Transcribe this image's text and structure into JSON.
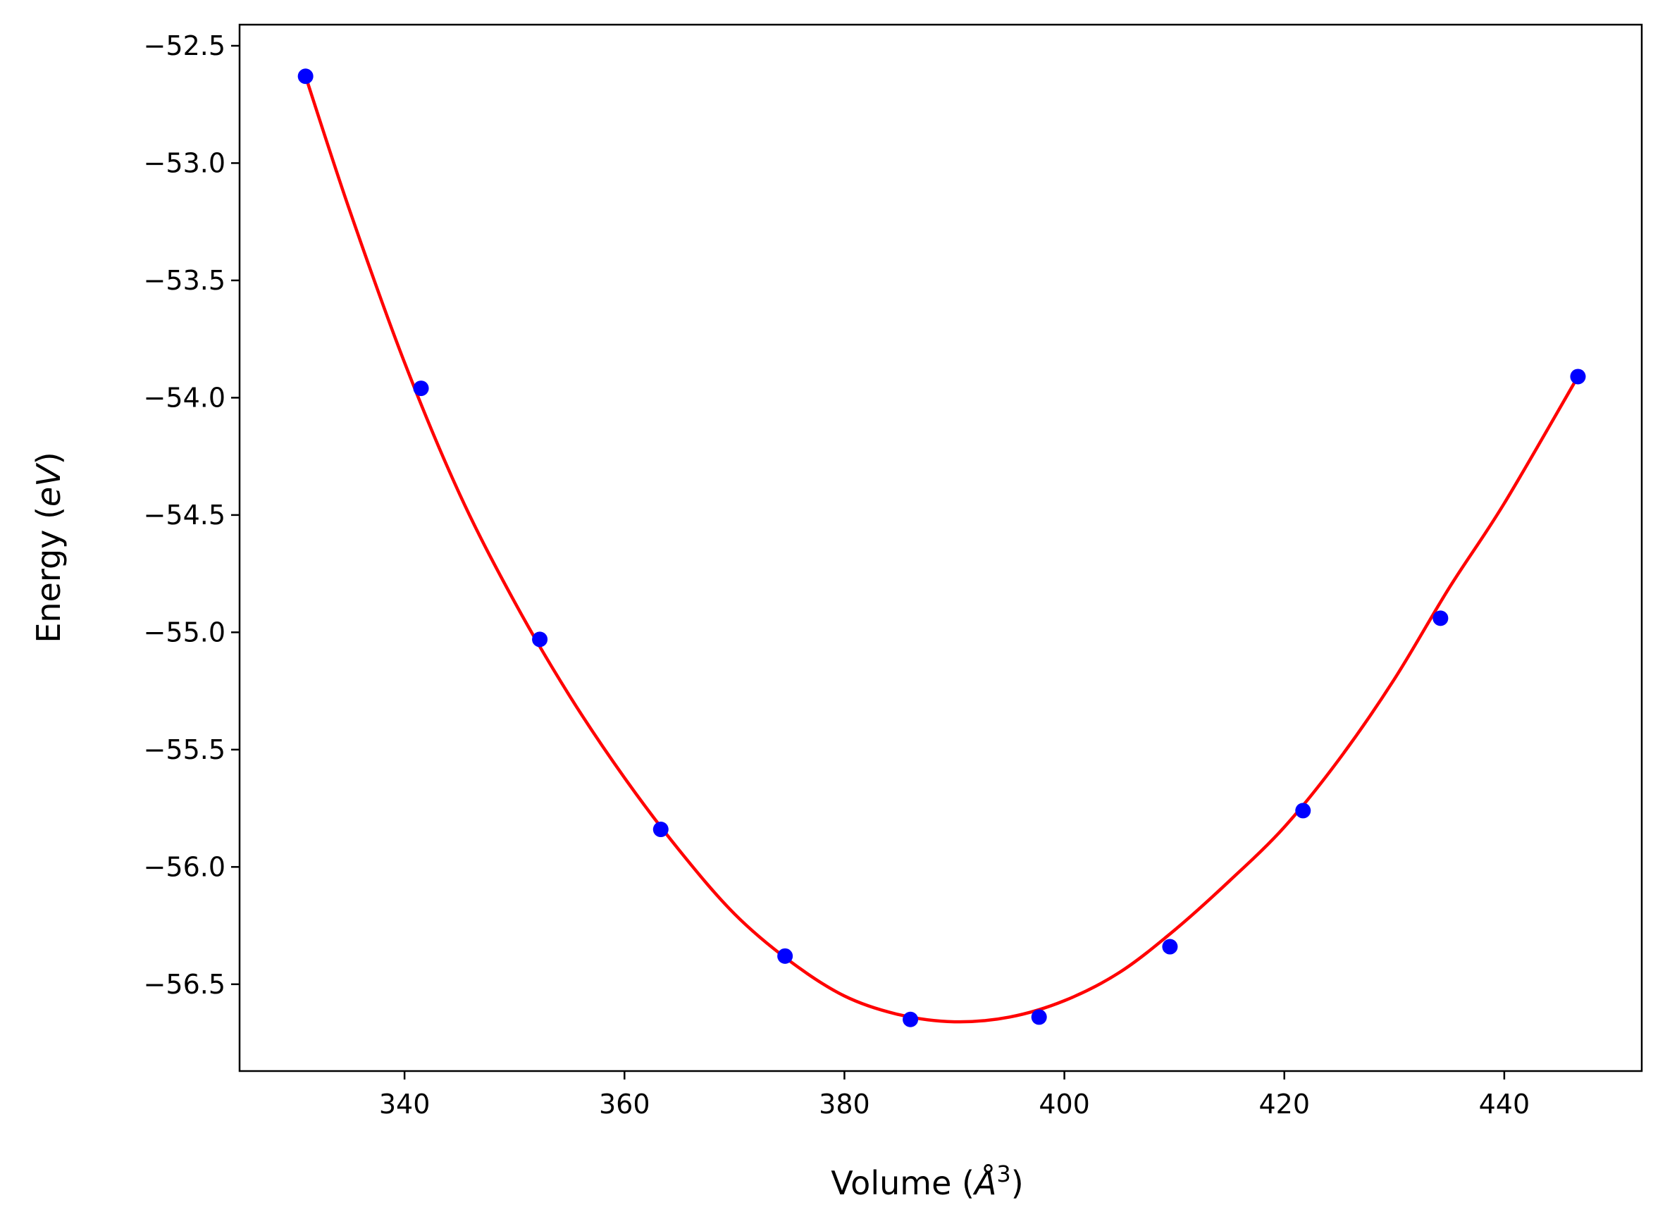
{
  "chart_data": {
    "type": "scatter",
    "xlabel": "Volume (",
    "xlabel_symbol": "Å",
    "xlabel_sup": "3",
    "xlabel_close": ")",
    "ylabel": "Energy (",
    "ylabel_unit": "eV",
    "ylabel_close": ")",
    "xlim": [
      325.0,
      452.5
    ],
    "ylim": [
      -56.87,
      -52.41
    ],
    "x_ticks": [
      340,
      360,
      380,
      400,
      420,
      440
    ],
    "y_ticks": [
      -52.5,
      -53.0,
      -53.5,
      -54.0,
      -54.5,
      -55.0,
      -55.5,
      -56.0,
      -56.5
    ],
    "grid": false,
    "series": [
      {
        "kind": "points",
        "color": "#0000ff",
        "x": [
          331.0,
          341.5,
          352.3,
          363.3,
          374.6,
          386.0,
          397.7,
          409.6,
          421.7,
          434.2,
          446.7
        ],
        "y": [
          -52.63,
          -53.96,
          -55.03,
          -55.84,
          -56.38,
          -56.65,
          -56.64,
          -56.34,
          -55.76,
          -54.94,
          -53.91
        ]
      },
      {
        "kind": "fit-curve",
        "color": "#ff0000",
        "x": [
          331,
          335,
          340,
          345,
          350,
          355,
          360,
          365,
          370,
          375,
          380,
          385,
          390,
          395,
          400,
          405,
          410,
          415,
          420,
          425,
          430,
          435,
          440,
          446.7
        ],
        "y": [
          -52.63,
          -53.2,
          -53.85,
          -54.41,
          -54.87,
          -55.27,
          -55.62,
          -55.93,
          -56.2,
          -56.4,
          -56.55,
          -56.63,
          -56.66,
          -56.64,
          -56.57,
          -56.45,
          -56.27,
          -56.06,
          -55.83,
          -55.54,
          -55.2,
          -54.81,
          -54.45,
          -53.91
        ]
      }
    ]
  }
}
